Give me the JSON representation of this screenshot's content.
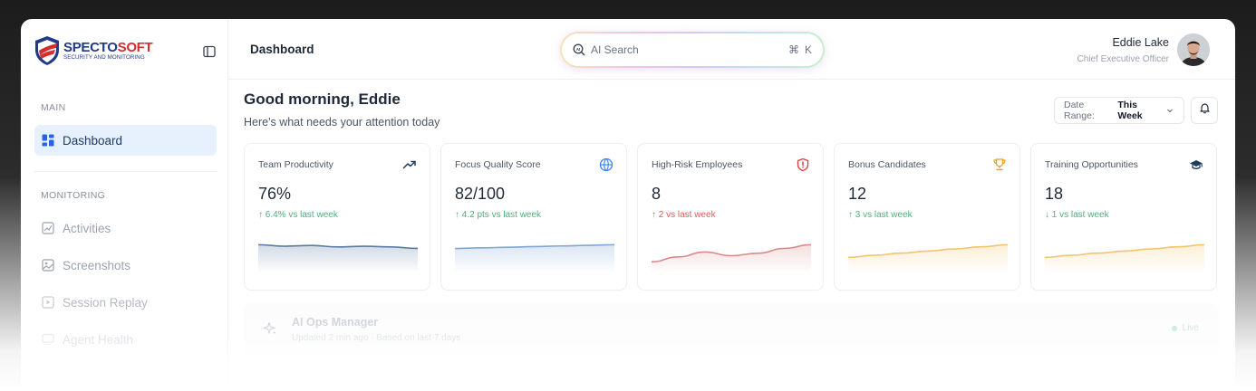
{
  "app": {
    "logo_main": "SPECTO",
    "logo_accent": "SOFT",
    "logo_sub": "SECURITY AND MONITORING"
  },
  "sidebar": {
    "sections": [
      {
        "label": "MAIN"
      },
      {
        "label": "MONITORING"
      }
    ],
    "items": [
      {
        "label": "Dashboard",
        "icon": "grid-icon",
        "active": true
      },
      {
        "label": "Activities",
        "icon": "activity-chart-icon"
      },
      {
        "label": "Screenshots",
        "icon": "image-icon"
      },
      {
        "label": "Session Replay",
        "icon": "play-circle-icon"
      },
      {
        "label": "Agent Health",
        "icon": "monitor-icon"
      }
    ]
  },
  "header": {
    "title": "Dashboard",
    "search": {
      "placeholder": "AI Search",
      "shortcut_symbol": "⌘",
      "shortcut_key": "K"
    },
    "user": {
      "name": "Eddie Lake",
      "role": "Chief Executive Officer"
    }
  },
  "main": {
    "greeting": "Good morning, Eddie",
    "subtitle": "Here's what needs your attention today",
    "date_range": {
      "label": "Date Range:",
      "value": "This Week"
    },
    "cards": [
      {
        "title": "Team Productivity",
        "value": "76%",
        "delta": "↑ 6.4% vs last week",
        "icon": "trending-up-icon",
        "color": "#5a7ba3",
        "delta_color": "#4caf7d",
        "trend": [
          36,
          34,
          35,
          33,
          34,
          33,
          31
        ]
      },
      {
        "title": "Focus Quality Score",
        "value": "82/100",
        "delta": "↑ 4.2 pts vs last week",
        "icon": "globe-brain-icon",
        "color": "#7fa7d6",
        "delta_color": "#4caf7d",
        "trend": [
          22,
          22.6,
          23.2,
          23.8,
          24.4,
          25,
          25.6
        ]
      },
      {
        "title": "High-Risk Employees",
        "value": "8",
        "delta": "↑ 2 vs last week",
        "icon": "shield-alert-icon",
        "color": "#d98a8a",
        "delta_color": "#e05a5a",
        "trend": [
          4,
          6,
          8,
          6.5,
          7.5,
          9.5,
          11
        ]
      },
      {
        "title": "Bonus Candidates",
        "value": "12",
        "delta": "↑ 3 vs last week",
        "icon": "trophy-icon",
        "color": "#f2c46d",
        "delta_color": "#4caf7d",
        "trend": [
          8,
          9.2,
          10.4,
          11.6,
          12.8,
          14,
          15.2
        ]
      },
      {
        "title": "Training Opportunities",
        "value": "18",
        "delta": "↓ 1 vs last week",
        "icon": "graduation-cap-icon",
        "color": "#f2c46d",
        "delta_color": "#4caf7d",
        "trend": [
          8,
          9.2,
          10.4,
          11.6,
          12.8,
          14,
          15.2
        ]
      }
    ],
    "ai_panel": {
      "title": "AI Ops Manager",
      "subtitle": "Updated 2 min ago · Based on last 7 days",
      "status": "Live"
    }
  }
}
